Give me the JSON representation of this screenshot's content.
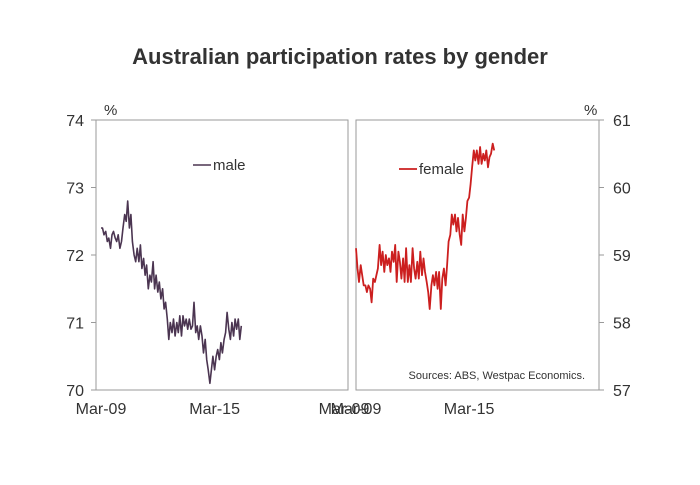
{
  "title": "Australian participation rates by gender",
  "source_note": "Sources: ABS, Westpac Economics.",
  "chart_data": [
    {
      "type": "line",
      "panel": "left",
      "series_name": "male",
      "color": "#4b3551",
      "unit_label": "%",
      "ylim": [
        70,
        74
      ],
      "yticks": [
        70,
        71,
        72,
        73,
        74
      ],
      "xlim": [
        2009.17,
        2022.0
      ],
      "xticks": [
        {
          "label": "Mar-09",
          "x": 2009.17
        },
        {
          "label": "Mar-15",
          "x": 2015.17
        },
        {
          "label": "Mar-09",
          "x": 2022.0
        }
      ],
      "points": [
        [
          2009.17,
          72.4
        ],
        [
          2009.25,
          72.4
        ],
        [
          2009.33,
          72.3
        ],
        [
          2009.42,
          72.35
        ],
        [
          2009.5,
          72.2
        ],
        [
          2009.58,
          72.25
        ],
        [
          2009.67,
          72.1
        ],
        [
          2009.75,
          72.3
        ],
        [
          2009.83,
          72.35
        ],
        [
          2009.92,
          72.25
        ],
        [
          2010.0,
          72.2
        ],
        [
          2010.08,
          72.3
        ],
        [
          2010.17,
          72.1
        ],
        [
          2010.25,
          72.2
        ],
        [
          2010.33,
          72.4
        ],
        [
          2010.42,
          72.6
        ],
        [
          2010.5,
          72.5
        ],
        [
          2010.58,
          72.8
        ],
        [
          2010.67,
          72.4
        ],
        [
          2010.75,
          72.6
        ],
        [
          2010.83,
          72.2
        ],
        [
          2010.92,
          72.0
        ],
        [
          2011.0,
          71.9
        ],
        [
          2011.08,
          72.1
        ],
        [
          2011.17,
          71.9
        ],
        [
          2011.25,
          72.15
        ],
        [
          2011.33,
          71.8
        ],
        [
          2011.42,
          71.95
        ],
        [
          2011.5,
          71.7
        ],
        [
          2011.58,
          71.85
        ],
        [
          2011.67,
          71.5
        ],
        [
          2011.75,
          71.7
        ],
        [
          2011.83,
          71.6
        ],
        [
          2011.92,
          71.9
        ],
        [
          2012.0,
          71.5
        ],
        [
          2012.08,
          71.7
        ],
        [
          2012.17,
          71.45
        ],
        [
          2012.25,
          71.6
        ],
        [
          2012.33,
          71.35
        ],
        [
          2012.42,
          71.5
        ],
        [
          2012.5,
          71.2
        ],
        [
          2012.58,
          71.3
        ],
        [
          2012.67,
          71.05
        ],
        [
          2012.75,
          70.75
        ],
        [
          2012.83,
          71.0
        ],
        [
          2012.92,
          70.85
        ],
        [
          2013.0,
          71.05
        ],
        [
          2013.08,
          70.8
        ],
        [
          2013.17,
          71.0
        ],
        [
          2013.25,
          70.85
        ],
        [
          2013.33,
          71.1
        ],
        [
          2013.42,
          70.8
        ],
        [
          2013.5,
          71.1
        ],
        [
          2013.58,
          70.95
        ],
        [
          2013.67,
          71.05
        ],
        [
          2013.75,
          70.9
        ],
        [
          2013.83,
          71.05
        ],
        [
          2013.92,
          70.9
        ],
        [
          2014.0,
          70.95
        ],
        [
          2014.08,
          71.3
        ],
        [
          2014.17,
          70.85
        ],
        [
          2014.25,
          70.95
        ],
        [
          2014.33,
          70.75
        ],
        [
          2014.42,
          70.95
        ],
        [
          2014.5,
          70.8
        ],
        [
          2014.58,
          70.55
        ],
        [
          2014.67,
          70.75
        ],
        [
          2014.75,
          70.45
        ],
        [
          2014.83,
          70.3
        ],
        [
          2014.92,
          70.1
        ],
        [
          2015.0,
          70.3
        ],
        [
          2015.08,
          70.5
        ],
        [
          2015.17,
          70.3
        ],
        [
          2015.25,
          70.5
        ],
        [
          2015.33,
          70.6
        ],
        [
          2015.42,
          70.45
        ],
        [
          2015.5,
          70.7
        ],
        [
          2015.58,
          70.55
        ],
        [
          2015.67,
          70.75
        ],
        [
          2015.75,
          70.85
        ],
        [
          2015.83,
          71.15
        ],
        [
          2015.92,
          70.9
        ],
        [
          2016.0,
          70.75
        ],
        [
          2016.08,
          71.0
        ],
        [
          2016.17,
          70.8
        ],
        [
          2016.25,
          71.05
        ],
        [
          2016.33,
          70.9
        ],
        [
          2016.42,
          71.05
        ],
        [
          2016.5,
          70.75
        ],
        [
          2016.58,
          70.95
        ]
      ]
    },
    {
      "type": "line",
      "panel": "right",
      "series_name": "female",
      "color": "#cc1f1f",
      "unit_label": "%",
      "ylim": [
        57,
        61
      ],
      "yticks": [
        57,
        58,
        59,
        60,
        61
      ],
      "xlim": [
        2009.17,
        2021.9
      ],
      "xticks": [
        {
          "label": "Mar-09",
          "x": 2009.17
        },
        {
          "label": "Mar-15",
          "x": 2015.17
        }
      ],
      "points": [
        [
          2009.17,
          59.1
        ],
        [
          2009.25,
          58.8
        ],
        [
          2009.33,
          58.6
        ],
        [
          2009.42,
          58.85
        ],
        [
          2009.5,
          58.7
        ],
        [
          2009.58,
          58.55
        ],
        [
          2009.67,
          58.55
        ],
        [
          2009.75,
          58.45
        ],
        [
          2009.83,
          58.55
        ],
        [
          2009.92,
          58.5
        ],
        [
          2010.0,
          58.3
        ],
        [
          2010.08,
          58.65
        ],
        [
          2010.17,
          58.6
        ],
        [
          2010.25,
          58.7
        ],
        [
          2010.33,
          58.8
        ],
        [
          2010.42,
          59.15
        ],
        [
          2010.5,
          58.85
        ],
        [
          2010.58,
          59.05
        ],
        [
          2010.67,
          58.75
        ],
        [
          2010.75,
          59.0
        ],
        [
          2010.83,
          58.85
        ],
        [
          2010.92,
          58.95
        ],
        [
          2011.0,
          58.75
        ],
        [
          2011.08,
          59.05
        ],
        [
          2011.17,
          58.9
        ],
        [
          2011.25,
          59.15
        ],
        [
          2011.33,
          58.6
        ],
        [
          2011.42,
          59.05
        ],
        [
          2011.5,
          58.9
        ],
        [
          2011.58,
          58.65
        ],
        [
          2011.67,
          58.95
        ],
        [
          2011.75,
          58.6
        ],
        [
          2011.83,
          59.1
        ],
        [
          2011.92,
          58.6
        ],
        [
          2012.0,
          58.85
        ],
        [
          2012.08,
          58.6
        ],
        [
          2012.17,
          59.1
        ],
        [
          2012.25,
          58.8
        ],
        [
          2012.33,
          58.65
        ],
        [
          2012.42,
          58.9
        ],
        [
          2012.5,
          58.65
        ],
        [
          2012.58,
          59.05
        ],
        [
          2012.67,
          58.7
        ],
        [
          2012.75,
          58.95
        ],
        [
          2012.83,
          58.75
        ],
        [
          2012.92,
          58.6
        ],
        [
          2013.0,
          58.45
        ],
        [
          2013.08,
          58.2
        ],
        [
          2013.17,
          58.55
        ],
        [
          2013.25,
          58.7
        ],
        [
          2013.33,
          58.55
        ],
        [
          2013.42,
          58.75
        ],
        [
          2013.5,
          58.5
        ],
        [
          2013.58,
          58.75
        ],
        [
          2013.67,
          58.2
        ],
        [
          2013.75,
          58.65
        ],
        [
          2013.83,
          58.8
        ],
        [
          2013.92,
          58.55
        ],
        [
          2014.0,
          58.85
        ],
        [
          2014.08,
          59.2
        ],
        [
          2014.17,
          59.3
        ],
        [
          2014.25,
          59.6
        ],
        [
          2014.33,
          59.45
        ],
        [
          2014.42,
          59.6
        ],
        [
          2014.5,
          59.35
        ],
        [
          2014.58,
          59.55
        ],
        [
          2014.67,
          59.3
        ],
        [
          2014.75,
          59.15
        ],
        [
          2014.83,
          59.6
        ],
        [
          2014.92,
          59.35
        ],
        [
          2015.0,
          59.55
        ],
        [
          2015.08,
          59.8
        ],
        [
          2015.17,
          59.85
        ],
        [
          2015.25,
          60.05
        ],
        [
          2015.33,
          60.3
        ],
        [
          2015.42,
          60.55
        ],
        [
          2015.5,
          60.4
        ],
        [
          2015.58,
          60.55
        ],
        [
          2015.67,
          60.35
        ],
        [
          2015.75,
          60.6
        ],
        [
          2015.83,
          60.35
        ],
        [
          2015.92,
          60.5
        ],
        [
          2016.0,
          60.4
        ],
        [
          2016.08,
          60.55
        ],
        [
          2016.17,
          60.3
        ],
        [
          2016.25,
          60.45
        ],
        [
          2016.33,
          60.5
        ],
        [
          2016.42,
          60.65
        ],
        [
          2016.5,
          60.55
        ]
      ]
    }
  ]
}
